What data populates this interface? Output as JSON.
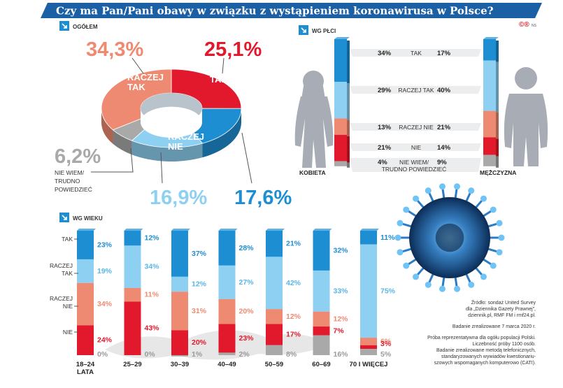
{
  "header": {
    "title": "Czy ma Pan/Pani obawy w związku z wystąpieniem koronawirusa w Polsce?",
    "logos": "©®",
    "initials": "NS"
  },
  "colors": {
    "tak": "#e2192c",
    "raczej_tak": "#ef8a72",
    "raczej_nie": "#8ed0f2",
    "nie": "#1e8ed3",
    "nie_wiem": "#a9a9a9",
    "header_bg": "#1b5fa5"
  },
  "chart_data": [
    {
      "type": "pie",
      "title": "OGÓŁEM",
      "categories": [
        "TAK",
        "NIE",
        "RACZEJ NIE",
        "NIE WIEM/ TRUDNO POWIEDZIEĆ",
        "RACZEJ TAK"
      ],
      "values": [
        25.1,
        17.6,
        16.9,
        6.2,
        34.3
      ],
      "value_labels": [
        "25,1%",
        "17,6%",
        "16,9%",
        "6,2%",
        "34,3%"
      ],
      "segment_labels": [
        "TAK",
        "NIE",
        "RACZEJ NIE",
        "",
        "RACZEJ TAK"
      ],
      "unknown_label_lines": [
        "NIE WIEM/",
        "TRUDNO",
        "POWIEDZIEĆ"
      ]
    },
    {
      "type": "bar",
      "title": "WG PŁCI",
      "stacked": true,
      "categories": [
        "KOBIETA",
        "MĘŻCZYZNA"
      ],
      "series": [
        {
          "name": "TAK",
          "values": [
            34,
            17
          ]
        },
        {
          "name": "RACZEJ TAK",
          "values": [
            29,
            40
          ]
        },
        {
          "name": "RACZEJ NIE",
          "values": [
            13,
            21
          ]
        },
        {
          "name": "NIE",
          "values": [
            21,
            14
          ]
        },
        {
          "name": "NIE WIEM/ TRUDNO POWIEDZIEĆ",
          "values": [
            4,
            9
          ]
        }
      ],
      "unknown_label_lines": [
        "NIE WIEM/",
        "TRUDNO POWIEDZIEĆ"
      ]
    },
    {
      "type": "bar",
      "title": "WG WIEKU",
      "stacked": true,
      "categories": [
        "18–24 LATA",
        "25–29",
        "30–39",
        "40–49",
        "50–59",
        "60–69",
        "70 I WIĘCEJ"
      ],
      "category_label_lines": [
        [
          "18–24",
          "LATA"
        ],
        [
          "25–29"
        ],
        [
          "30–39"
        ],
        [
          "40–49"
        ],
        [
          "50–59"
        ],
        [
          "60–69"
        ],
        [
          "70 I WIĘCEJ"
        ]
      ],
      "series": [
        {
          "name": "TAK",
          "values": [
            23,
            12,
            37,
            28,
            21,
            32,
            11
          ]
        },
        {
          "name": "RACZEJ TAK",
          "values": [
            19,
            34,
            12,
            27,
            42,
            33,
            75
          ]
        },
        {
          "name": "RACZEJ NIE",
          "values": [
            34,
            11,
            31,
            20,
            12,
            12,
            6
          ]
        },
        {
          "name": "NIE",
          "values": [
            24,
            43,
            20,
            23,
            17,
            7,
            3
          ]
        },
        {
          "name": "NIE WIEM",
          "values": [
            0,
            0,
            1,
            2,
            8,
            16,
            5
          ]
        }
      ],
      "row_labels": [
        [
          "TAK"
        ],
        [
          "RACZEJ",
          "TAK"
        ],
        [
          "RACZEJ",
          "NIE"
        ],
        [
          "NIE"
        ]
      ]
    }
  ],
  "source": {
    "lines_1": [
      "Źródło: sondaż United Survey",
      "dla „Dziennika Gazety Prawnej”,",
      "dziennik.pl, RMF FM i rmf24.pl."
    ],
    "lines_2": [
      "Badanie zrealizowane 7 marca 2020 r."
    ],
    "lines_3": [
      "Próba reprezentatywna dla ogółu populacji Polski.",
      "Liczebność próby 1100 osób.",
      "Badanie zrealizowane metodą telefonicznych,",
      "standaryzowanych wywiadów kwestionariu-",
      "szowych wspomaganych komputerowo (CATI)."
    ]
  }
}
